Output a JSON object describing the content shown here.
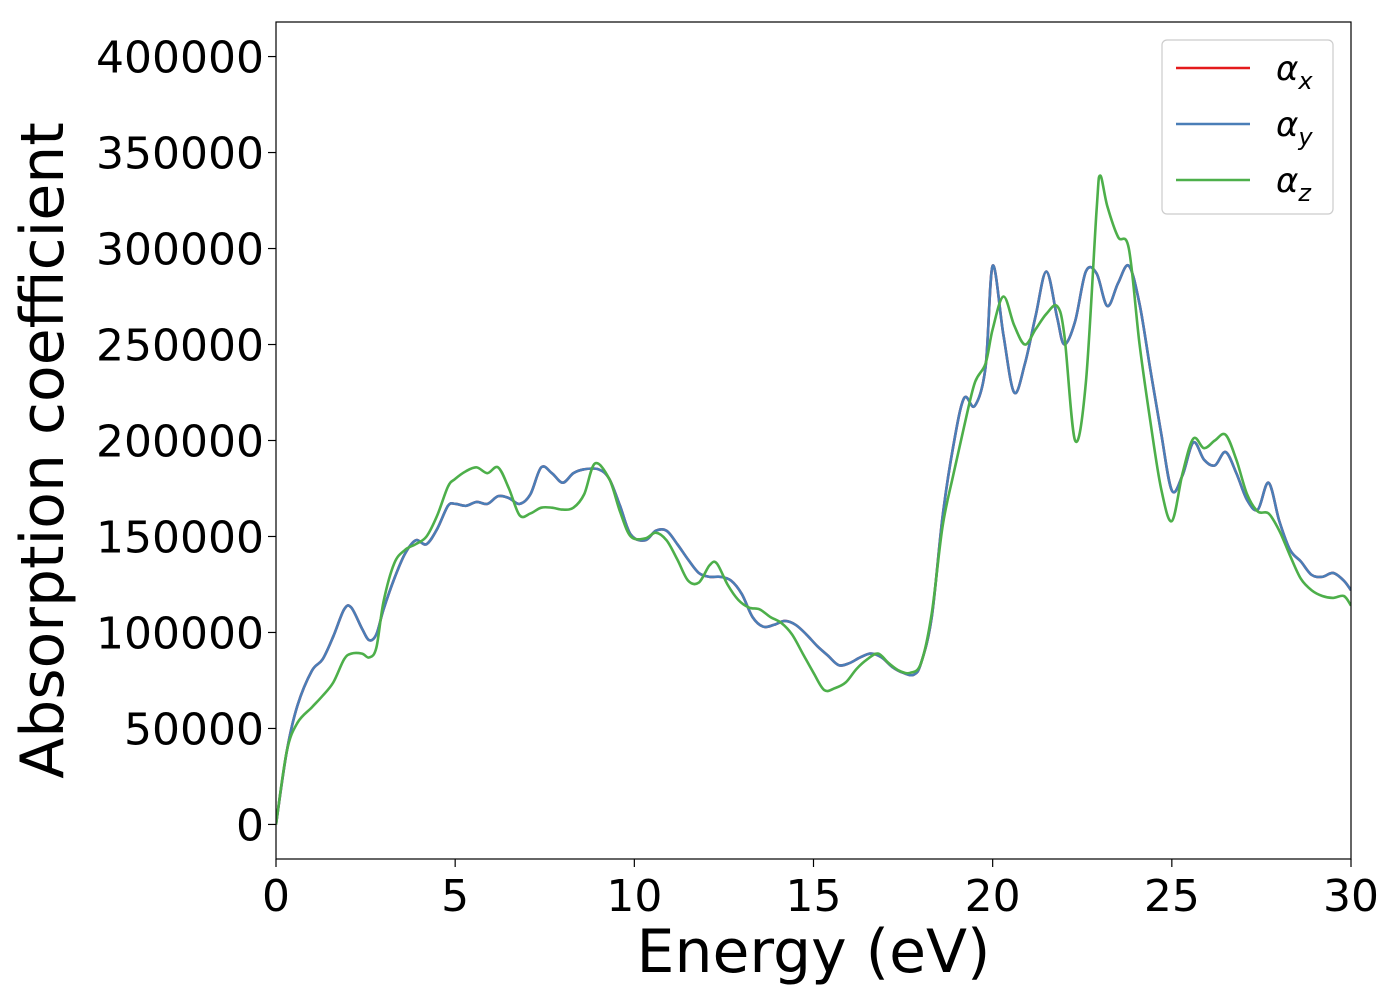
{
  "chart_data": {
    "type": "line",
    "xlabel": "Energy (eV)",
    "ylabel": "Absorption coefficient",
    "xlim": [
      0,
      30
    ],
    "ylim": [
      -18000,
      418000
    ],
    "x_ticks": [
      "0",
      "5",
      "10",
      "15",
      "20",
      "25",
      "30"
    ],
    "y_ticks": [
      "0",
      "50000",
      "100000",
      "150000",
      "200000",
      "250000",
      "300000",
      "350000",
      "400000"
    ],
    "grid": false,
    "legend": "top-right",
    "series": [
      {
        "name": "α_x",
        "legend_base": "α",
        "legend_sub": "x",
        "color": "#e41a1c",
        "x": [
          0,
          0.3,
          0.6,
          1.0,
          1.3,
          1.6,
          1.9,
          2.1,
          2.4,
          2.6,
          2.8,
          3.0,
          3.3,
          3.6,
          3.9,
          4.2,
          4.5,
          4.8,
          5.0,
          5.3,
          5.6,
          5.9,
          6.2,
          6.5,
          6.8,
          7.1,
          7.4,
          7.7,
          8.0,
          8.3,
          8.6,
          9.0,
          9.3,
          9.6,
          9.9,
          10.3,
          10.6,
          10.9,
          11.2,
          11.5,
          11.8,
          12.1,
          12.4,
          12.7,
          13.0,
          13.3,
          13.6,
          13.9,
          14.2,
          14.5,
          14.8,
          15.1,
          15.4,
          15.7,
          16.0,
          16.3,
          16.6,
          16.9,
          17.2,
          17.5,
          17.8,
          18.0,
          18.3,
          18.6,
          18.9,
          19.2,
          19.5,
          19.8,
          20.0,
          20.3,
          20.6,
          20.9,
          21.2,
          21.5,
          21.8,
          22.0,
          22.3,
          22.6,
          22.9,
          23.2,
          23.5,
          23.8,
          24.1,
          24.4,
          24.7,
          25.0,
          25.3,
          25.6,
          25.9,
          26.2,
          26.5,
          26.8,
          27.1,
          27.4,
          27.7,
          28.0,
          28.3,
          28.6,
          28.9,
          29.2,
          29.5,
          29.8,
          30.0
        ],
        "y": [
          0,
          38000,
          62000,
          80000,
          86000,
          98000,
          112000,
          113000,
          102000,
          96000,
          99000,
          112000,
          128000,
          141000,
          148000,
          146000,
          154000,
          166000,
          167000,
          166000,
          168000,
          167000,
          171000,
          170000,
          167000,
          172000,
          186000,
          183000,
          178000,
          183000,
          185000,
          185000,
          180000,
          166000,
          151000,
          148000,
          153000,
          153000,
          146000,
          138000,
          131000,
          129000,
          129000,
          127000,
          120000,
          108000,
          103000,
          104000,
          106000,
          104000,
          99000,
          93000,
          88000,
          83000,
          84000,
          87000,
          89000,
          87000,
          82000,
          79000,
          78000,
          84000,
          108000,
          160000,
          197000,
          222000,
          218000,
          238000,
          291000,
          255000,
          225000,
          240000,
          265000,
          288000,
          264000,
          250000,
          262000,
          288000,
          287000,
          270000,
          282000,
          291000,
          271000,
          237000,
          204000,
          174000,
          182000,
          199000,
          190000,
          187000,
          194000,
          183000,
          169000,
          164000,
          178000,
          158000,
          143000,
          137000,
          130000,
          129000,
          131000,
          127000,
          122000
        ]
      },
      {
        "name": "α_y",
        "legend_base": "α",
        "legend_sub": "y",
        "color": "#4a7eb7",
        "x": [
          0,
          0.3,
          0.6,
          1.0,
          1.3,
          1.6,
          1.9,
          2.1,
          2.4,
          2.6,
          2.8,
          3.0,
          3.3,
          3.6,
          3.9,
          4.2,
          4.5,
          4.8,
          5.0,
          5.3,
          5.6,
          5.9,
          6.2,
          6.5,
          6.8,
          7.1,
          7.4,
          7.7,
          8.0,
          8.3,
          8.6,
          9.0,
          9.3,
          9.6,
          9.9,
          10.3,
          10.6,
          10.9,
          11.2,
          11.5,
          11.8,
          12.1,
          12.4,
          12.7,
          13.0,
          13.3,
          13.6,
          13.9,
          14.2,
          14.5,
          14.8,
          15.1,
          15.4,
          15.7,
          16.0,
          16.3,
          16.6,
          16.9,
          17.2,
          17.5,
          17.8,
          18.0,
          18.3,
          18.6,
          18.9,
          19.2,
          19.5,
          19.8,
          20.0,
          20.3,
          20.6,
          20.9,
          21.2,
          21.5,
          21.8,
          22.0,
          22.3,
          22.6,
          22.9,
          23.2,
          23.5,
          23.8,
          24.1,
          24.4,
          24.7,
          25.0,
          25.3,
          25.6,
          25.9,
          26.2,
          26.5,
          26.8,
          27.1,
          27.4,
          27.7,
          28.0,
          28.3,
          28.6,
          28.9,
          29.2,
          29.5,
          29.8,
          30.0
        ],
        "y": [
          0,
          38000,
          62000,
          80000,
          86000,
          98000,
          112000,
          113000,
          102000,
          96000,
          99000,
          112000,
          128000,
          141000,
          148000,
          146000,
          154000,
          166000,
          167000,
          166000,
          168000,
          167000,
          171000,
          170000,
          167000,
          172000,
          186000,
          183000,
          178000,
          183000,
          185000,
          185000,
          180000,
          166000,
          151000,
          148000,
          153000,
          153000,
          146000,
          138000,
          131000,
          129000,
          129000,
          127000,
          120000,
          108000,
          103000,
          104000,
          106000,
          104000,
          99000,
          93000,
          88000,
          83000,
          84000,
          87000,
          89000,
          87000,
          82000,
          79000,
          78000,
          84000,
          108000,
          160000,
          197000,
          222000,
          218000,
          238000,
          291000,
          255000,
          225000,
          240000,
          265000,
          288000,
          264000,
          250000,
          262000,
          288000,
          287000,
          270000,
          282000,
          291000,
          271000,
          237000,
          204000,
          174000,
          182000,
          199000,
          190000,
          187000,
          194000,
          183000,
          169000,
          164000,
          178000,
          158000,
          143000,
          137000,
          130000,
          129000,
          131000,
          127000,
          122000
        ]
      },
      {
        "name": "α_z",
        "legend_base": "α",
        "legend_sub": "z",
        "color": "#4daf4a",
        "x": [
          0,
          0.3,
          0.6,
          1.0,
          1.3,
          1.6,
          1.9,
          2.1,
          2.4,
          2.6,
          2.8,
          3.0,
          3.3,
          3.6,
          3.9,
          4.2,
          4.5,
          4.8,
          5.0,
          5.3,
          5.6,
          5.9,
          6.2,
          6.5,
          6.8,
          7.1,
          7.4,
          7.7,
          8.0,
          8.3,
          8.6,
          8.9,
          9.3,
          9.6,
          9.9,
          10.3,
          10.6,
          10.9,
          11.2,
          11.5,
          11.8,
          12.1,
          12.3,
          12.6,
          12.9,
          13.2,
          13.5,
          13.8,
          14.1,
          14.4,
          14.7,
          15.0,
          15.3,
          15.6,
          15.9,
          16.2,
          16.5,
          16.8,
          17.1,
          17.4,
          17.7,
          18.0,
          18.3,
          18.6,
          18.9,
          19.2,
          19.5,
          19.8,
          20.0,
          20.3,
          20.6,
          20.9,
          21.2,
          21.5,
          21.8,
          22.0,
          22.3,
          22.6,
          22.9,
          23.0,
          23.2,
          23.5,
          23.8,
          24.1,
          24.4,
          24.7,
          25.0,
          25.3,
          25.6,
          25.9,
          26.2,
          26.5,
          26.8,
          27.1,
          27.4,
          27.7,
          28.0,
          28.3,
          28.6,
          28.9,
          29.2,
          29.5,
          29.8,
          30.0
        ],
        "y": [
          0,
          38000,
          53000,
          61000,
          67000,
          74000,
          86000,
          89000,
          89000,
          87000,
          92000,
          116000,
          136000,
          143000,
          146000,
          150000,
          161000,
          176000,
          180000,
          184000,
          186000,
          183000,
          186000,
          175000,
          161000,
          162000,
          165000,
          165000,
          164000,
          165000,
          172000,
          188000,
          180000,
          163000,
          150000,
          149000,
          152000,
          148000,
          138000,
          127000,
          126000,
          135000,
          136000,
          125000,
          117000,
          113000,
          112000,
          108000,
          105000,
          99000,
          89000,
          79000,
          70000,
          71000,
          74000,
          81000,
          86000,
          89000,
          84000,
          80000,
          79000,
          84000,
          110000,
          155000,
          182000,
          207000,
          230000,
          240000,
          258000,
          275000,
          260000,
          250000,
          258000,
          266000,
          270000,
          255000,
          200000,
          230000,
          320000,
          338000,
          322000,
          306000,
          300000,
          250000,
          210000,
          175000,
          158000,
          183000,
          201000,
          196000,
          200000,
          203000,
          190000,
          172000,
          163000,
          162000,
          153000,
          140000,
          128000,
          122000,
          119000,
          118000,
          119000,
          114000
        ]
      }
    ]
  }
}
